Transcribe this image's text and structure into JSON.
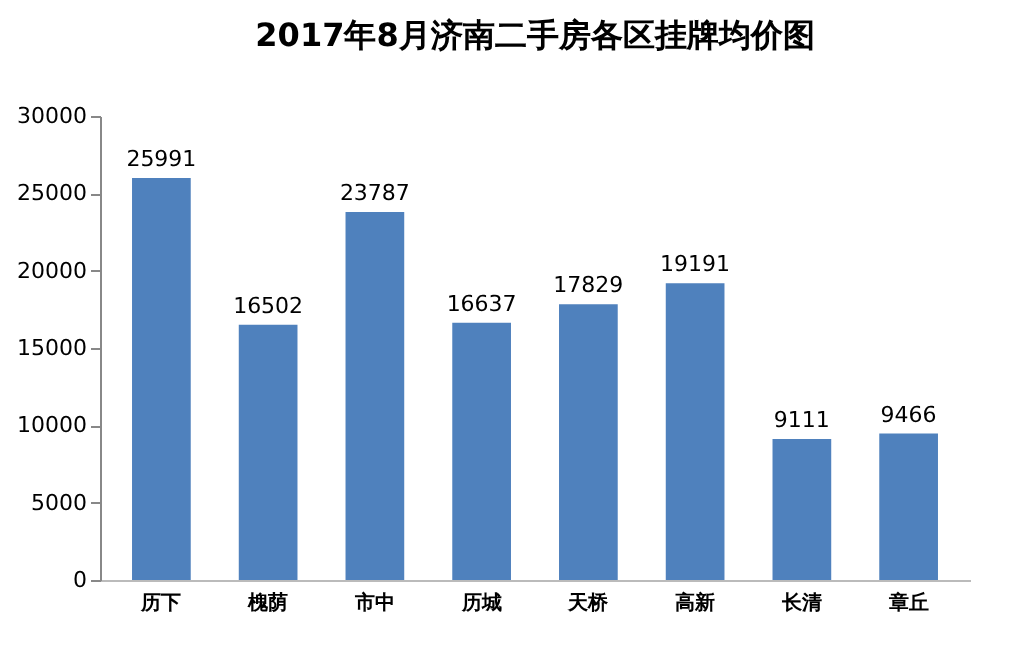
{
  "chart_data": {
    "type": "bar",
    "title": "2017年8月济南二手房各区挂牌均价图",
    "categories": [
      "历下",
      "槐荫",
      "市中",
      "历城",
      "天桥",
      "高新",
      "长清",
      "章丘"
    ],
    "values": [
      25991,
      16502,
      23787,
      16637,
      17829,
      19191,
      9111,
      9466
    ],
    "color": "#4f81bd",
    "ylim": [
      0,
      30000
    ],
    "yticks": [
      0,
      5000,
      10000,
      15000,
      20000,
      25000,
      30000
    ],
    "grid": false,
    "data_labels": true
  }
}
